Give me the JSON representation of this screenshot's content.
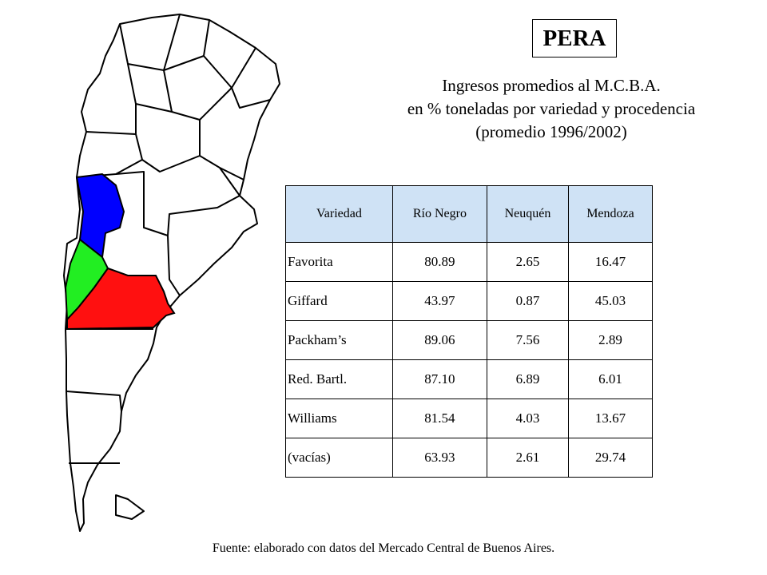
{
  "badge": "PERA",
  "heading": {
    "line1": "Ingresos promedios al M.C.B.A.",
    "line2": "en % toneladas por variedad y procedencia",
    "line3": "(promedio 1996/2002)"
  },
  "table": {
    "headers": [
      "Variedad",
      "Río Negro",
      "Neuquén",
      "Mendoza"
    ],
    "rows": [
      [
        "Favorita",
        "80.89",
        "2.65",
        "16.47"
      ],
      [
        "Giffard",
        "43.97",
        "0.87",
        "45.03"
      ],
      [
        "Packham’s",
        "89.06",
        "7.56",
        "2.89"
      ],
      [
        "Red. Bartl.",
        "87.10",
        "6.89",
        "6.01"
      ],
      [
        "Williams",
        "81.54",
        "4.03",
        "13.67"
      ],
      [
        "(vacías)",
        "63.93",
        "2.61",
        "29.74"
      ]
    ]
  },
  "map": {
    "regions": [
      {
        "name": "Mendoza",
        "color": "#0000ff"
      },
      {
        "name": "Neuquén",
        "color": "#00ff00"
      },
      {
        "name": "Río Negro",
        "color": "#ff0000"
      }
    ]
  },
  "source": "Fuente: elaborado con datos del Mercado Central de Buenos Aires."
}
